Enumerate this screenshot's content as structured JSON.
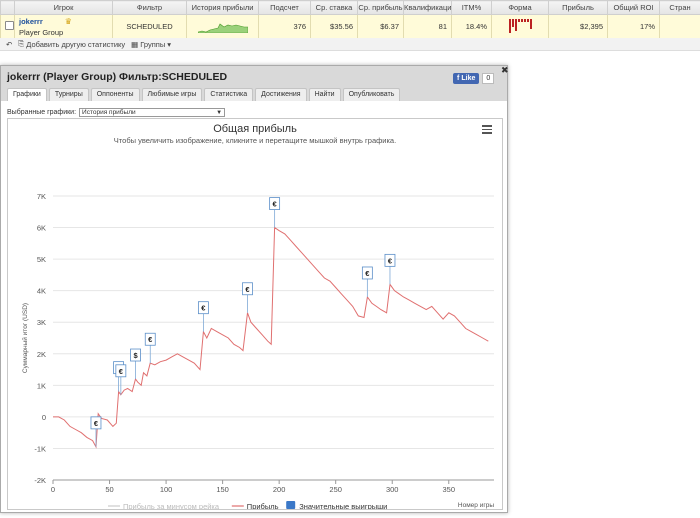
{
  "table": {
    "headers": [
      "Игрок",
      "Фильтр",
      "История прибыли",
      "Подсчет",
      "Ср. ставка",
      "Ср. прибыль",
      "Квалификаци",
      "ITM%",
      "Форма",
      "Прибыль",
      "Общий ROI",
      "Стран"
    ],
    "row": {
      "player": "jokerrr",
      "group": "Player Group",
      "filter": "SCHEDULED",
      "count": "376",
      "avg_stake": "$35.56",
      "avg_profit": "$6.37",
      "qualification": "81",
      "itm": "18.4%",
      "profit": "$2,395",
      "roi": "17%"
    }
  },
  "toolbar": {
    "add_stats": "Добавить другую статистику",
    "groups": "Группы"
  },
  "modal": {
    "title": "jokerrr (Player Group) Фильтр:SCHEDULED",
    "fb_like": "Like",
    "fb_count": "0",
    "tabs": [
      "Графики",
      "Турниры",
      "Оппоненты",
      "Любимые игры",
      "Статистика",
      "Достижения",
      "Найти",
      "Опубликовать"
    ],
    "graph_select_label": "Выбранные графики:",
    "graph_select_value": "История прибыли"
  },
  "chart_data": {
    "type": "line",
    "title": "Общая прибыль",
    "subtitle": "Чтобы увеличить изображение, кликните и перетащите мышкой внутрь графика.",
    "xlabel": "Номер игры",
    "ylabel": "Суммарный итог (USD)",
    "xlim": [
      0,
      390
    ],
    "ylim": [
      -2000,
      7000
    ],
    "x_ticks": [
      "0",
      "50",
      "100",
      "150",
      "200",
      "250",
      "300",
      "350"
    ],
    "y_ticks": [
      "-2K",
      "-1K",
      "0",
      "1K",
      "2K",
      "3K",
      "4K",
      "5K",
      "6K",
      "7K"
    ],
    "legend": [
      "Прибыль за минусом рейка",
      "Прибыль",
      "Значительные выигрыши"
    ],
    "series": [
      {
        "name": "Прибыль",
        "color": "#e07070",
        "points": [
          [
            0,
            0
          ],
          [
            5,
            0
          ],
          [
            10,
            -100
          ],
          [
            15,
            -300
          ],
          [
            20,
            -400
          ],
          [
            25,
            -500
          ],
          [
            30,
            -650
          ],
          [
            35,
            -750
          ],
          [
            38,
            -950
          ],
          [
            40,
            100
          ],
          [
            43,
            -50
          ],
          [
            48,
            -100
          ],
          [
            53,
            -300
          ],
          [
            56,
            -200
          ],
          [
            58,
            800
          ],
          [
            60,
            700
          ],
          [
            63,
            850
          ],
          [
            66,
            900
          ],
          [
            70,
            800
          ],
          [
            73,
            1200
          ],
          [
            75,
            1100
          ],
          [
            78,
            1000
          ],
          [
            80,
            1400
          ],
          [
            83,
            1300
          ],
          [
            86,
            1700
          ],
          [
            90,
            1650
          ],
          [
            95,
            1750
          ],
          [
            100,
            1800
          ],
          [
            105,
            1900
          ],
          [
            110,
            2000
          ],
          [
            115,
            1900
          ],
          [
            120,
            1800
          ],
          [
            125,
            1700
          ],
          [
            130,
            1500
          ],
          [
            133,
            2700
          ],
          [
            136,
            2500
          ],
          [
            140,
            2800
          ],
          [
            145,
            2700
          ],
          [
            150,
            2600
          ],
          [
            155,
            2500
          ],
          [
            160,
            2300
          ],
          [
            165,
            2200
          ],
          [
            168,
            2100
          ],
          [
            172,
            3300
          ],
          [
            175,
            3000
          ],
          [
            180,
            2800
          ],
          [
            185,
            2600
          ],
          [
            190,
            2400
          ],
          [
            193,
            2300
          ],
          [
            196,
            6000
          ],
          [
            200,
            5900
          ],
          [
            205,
            5800
          ],
          [
            210,
            5600
          ],
          [
            215,
            5400
          ],
          [
            220,
            5200
          ],
          [
            225,
            5000
          ],
          [
            230,
            4800
          ],
          [
            235,
            4600
          ],
          [
            240,
            4400
          ],
          [
            245,
            4300
          ],
          [
            250,
            4100
          ],
          [
            255,
            3900
          ],
          [
            260,
            3700
          ],
          [
            265,
            3500
          ],
          [
            270,
            3200
          ],
          [
            275,
            3150
          ],
          [
            278,
            3800
          ],
          [
            282,
            3600
          ],
          [
            286,
            3500
          ],
          [
            290,
            3400
          ],
          [
            295,
            3300
          ],
          [
            298,
            4200
          ],
          [
            302,
            4000
          ],
          [
            306,
            3900
          ],
          [
            310,
            3800
          ],
          [
            315,
            3700
          ],
          [
            320,
            3600
          ],
          [
            325,
            3500
          ],
          [
            330,
            3400
          ],
          [
            335,
            3500
          ],
          [
            340,
            3300
          ],
          [
            345,
            3100
          ],
          [
            350,
            3300
          ],
          [
            355,
            3200
          ],
          [
            360,
            3000
          ],
          [
            365,
            2800
          ],
          [
            370,
            2700
          ],
          [
            375,
            2600
          ],
          [
            380,
            2500
          ],
          [
            385,
            2400
          ]
        ]
      }
    ],
    "big_wins": [
      {
        "x": 38,
        "label": "€"
      },
      {
        "x": 58,
        "label": "€"
      },
      {
        "x": 60,
        "label": "€"
      },
      {
        "x": 73,
        "label": "$"
      },
      {
        "x": 86,
        "label": "€"
      },
      {
        "x": 133,
        "label": "€"
      },
      {
        "x": 172,
        "label": "€"
      },
      {
        "x": 196,
        "label": "€"
      },
      {
        "x": 278,
        "label": "€"
      },
      {
        "x": 298,
        "label": "€"
      }
    ],
    "grid": true,
    "legend_position": "bottom"
  }
}
